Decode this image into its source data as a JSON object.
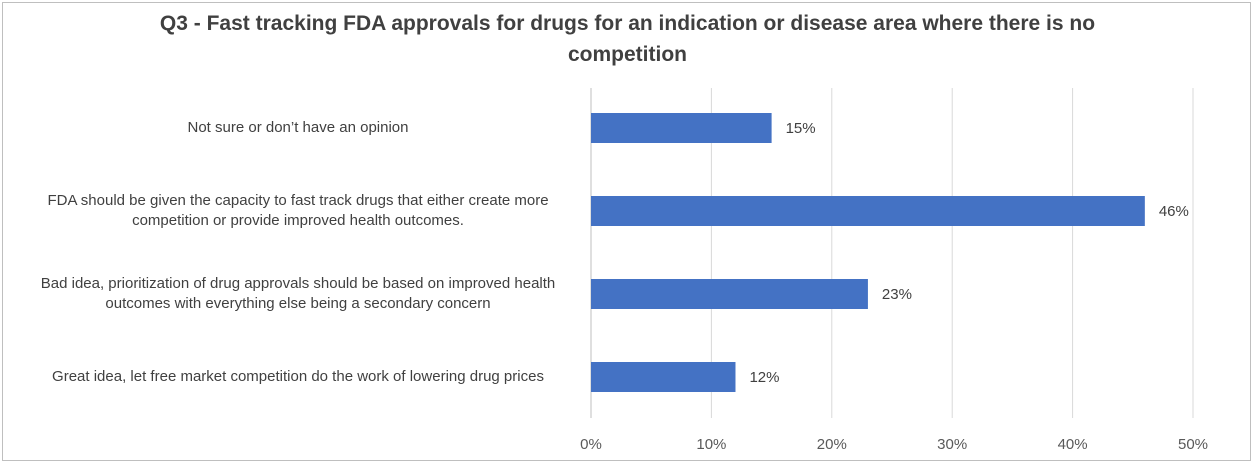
{
  "chart_data": {
    "type": "bar",
    "orientation": "horizontal",
    "title": "Q3 - Fast tracking FDA approvals for drugs for an indication or disease area where there is no competition",
    "categories": [
      "Not sure or don’t have an opinion",
      "FDA should be given the capacity to fast track drugs that either create more competition or provide improved health outcomes.",
      "Bad idea, prioritization of drug approvals should be based on improved health outcomes with everything else being a secondary concern",
      "Great idea, let free market competition do the work of lowering drug prices"
    ],
    "values": [
      15,
      46,
      23,
      12
    ],
    "data_labels": [
      "15%",
      "46%",
      "23%",
      "12%"
    ],
    "xlim": [
      0,
      50
    ],
    "x_ticks": [
      0,
      10,
      20,
      30,
      40,
      50
    ],
    "x_tick_labels": [
      "0%",
      "10%",
      "20%",
      "30%",
      "40%",
      "50%"
    ],
    "grid": true,
    "bar_color": "#4472C4"
  }
}
